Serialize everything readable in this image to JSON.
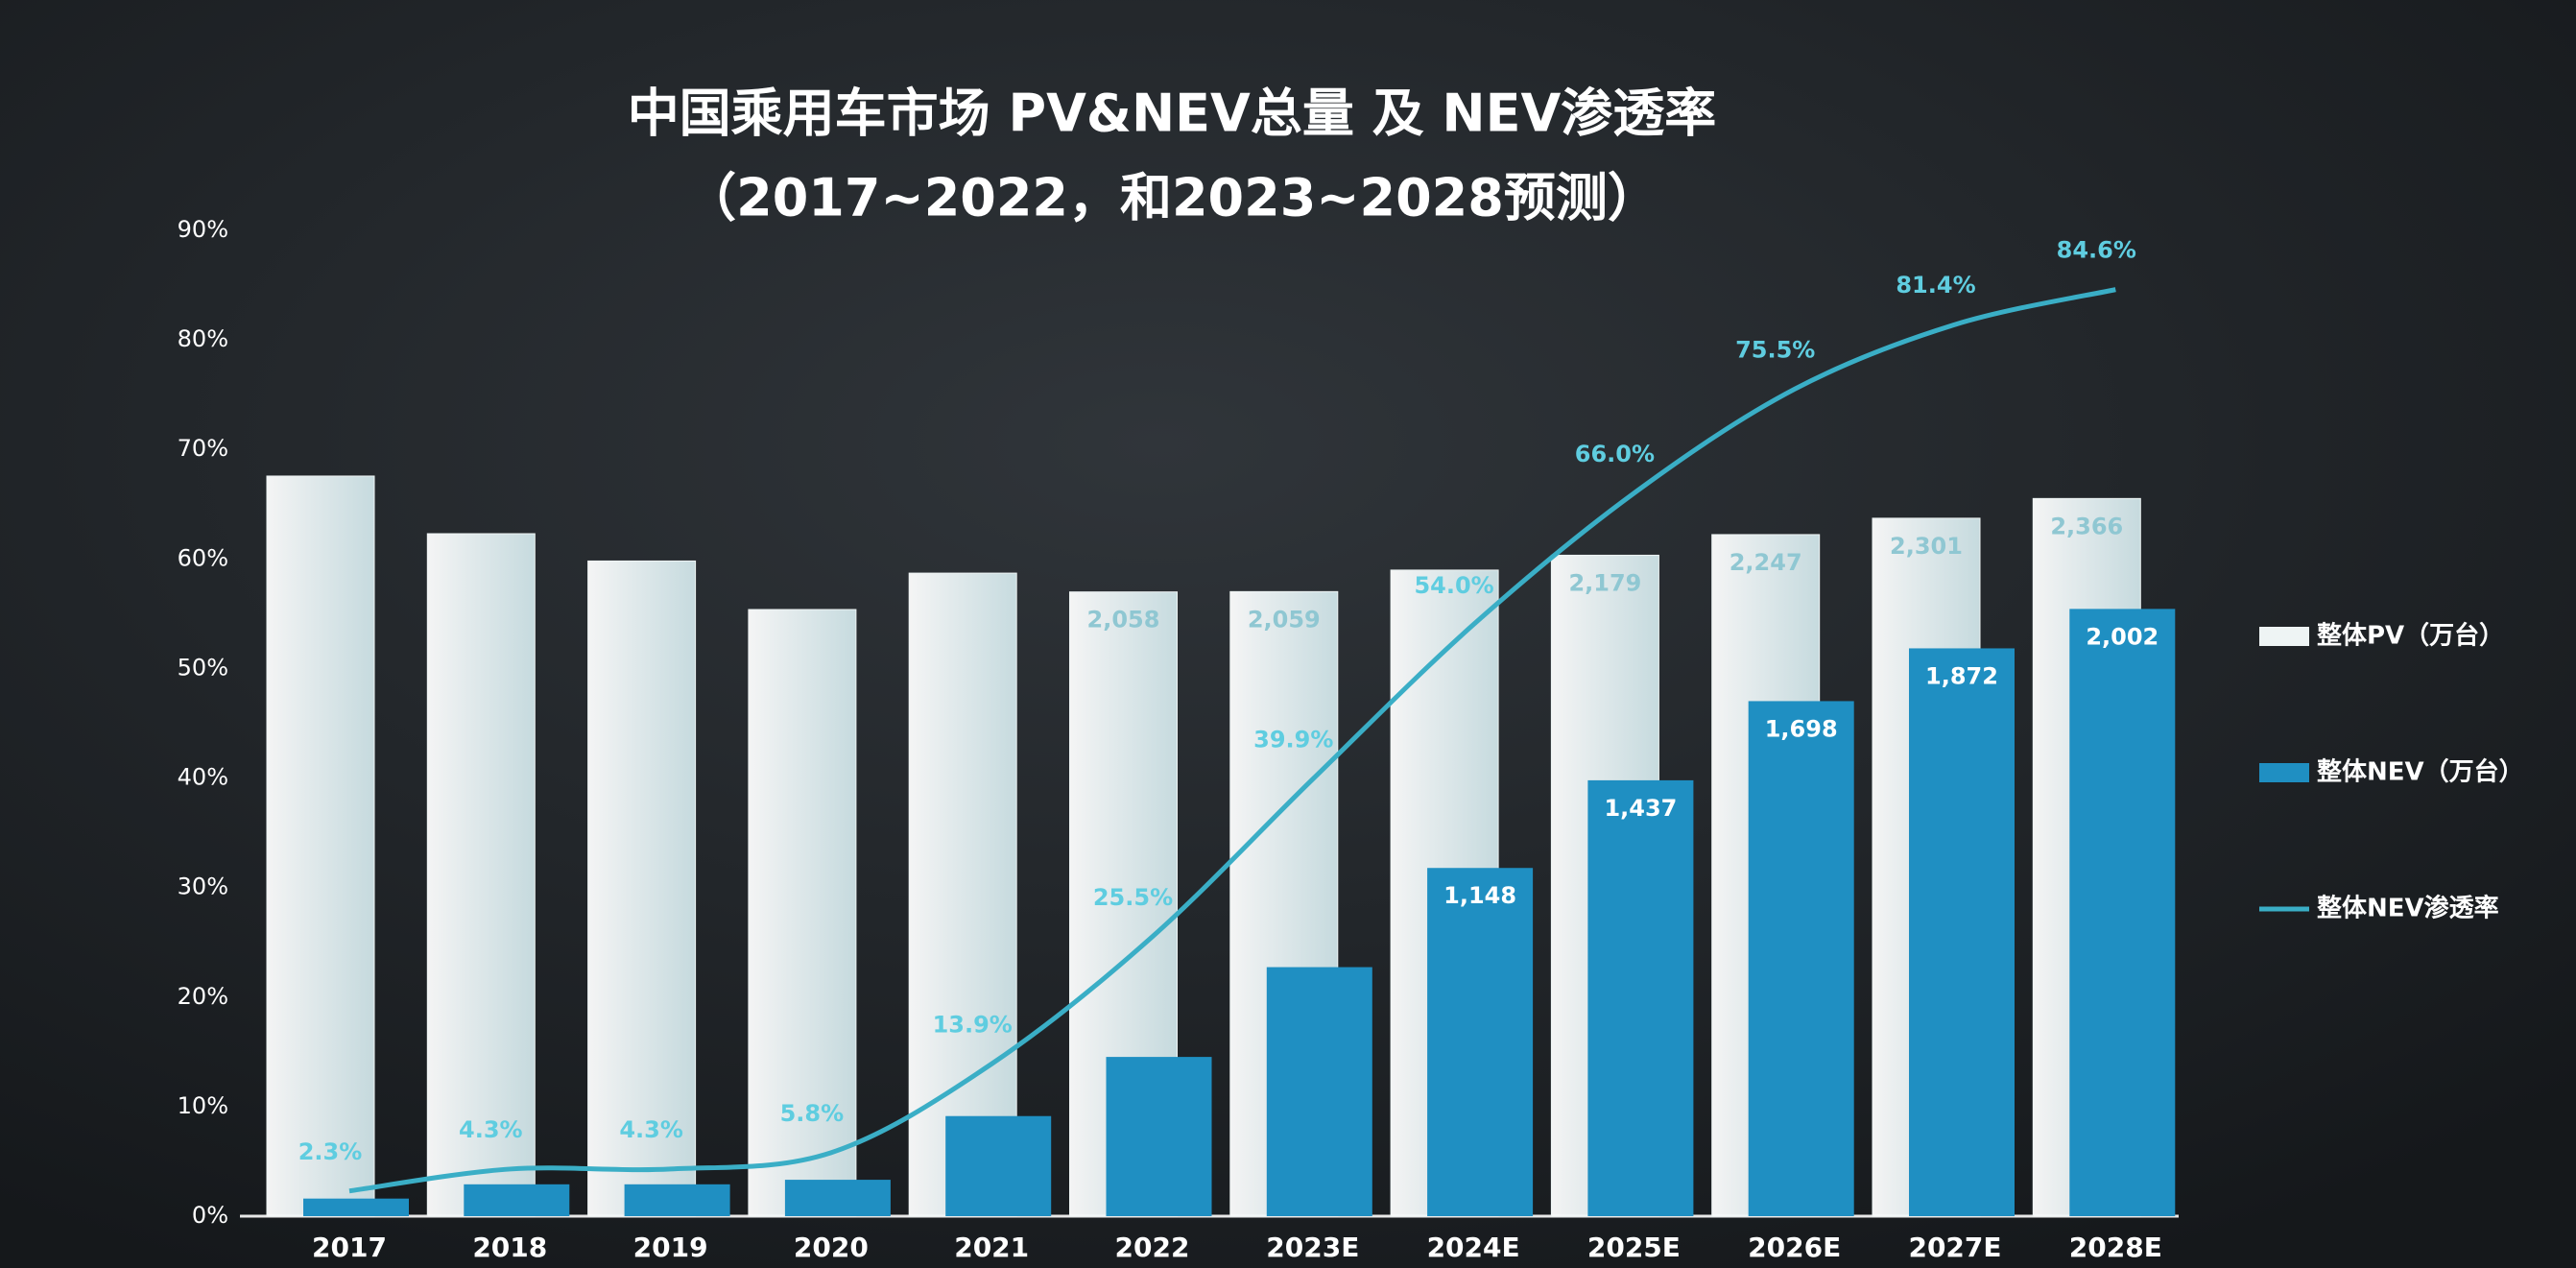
{
  "chart_data": {
    "type": "bar",
    "title": "中国乘用车市场 PV&NEV总量 及 NEV渗透率",
    "subtitle": "（2017~2022，和2023~2028预测）",
    "categories": [
      "2017",
      "2018",
      "2019",
      "2020",
      "2021",
      "2022",
      "2023E",
      "2024E",
      "2025E",
      "2026E",
      "2027E",
      "2028E"
    ],
    "series": [
      {
        "name": "整体PV（万台）",
        "type": "bar",
        "axis": "y2",
        "color": "#eef4f4",
        "values": [
          2440,
          2250,
          2160,
          2000,
          2120,
          2058,
          2059,
          2130,
          2179,
          2247,
          2301,
          2366
        ],
        "value_labels": [
          null,
          null,
          null,
          null,
          null,
          "2,058",
          "2,059",
          null,
          "2,179",
          "2,247",
          "2,301",
          "2,366"
        ]
      },
      {
        "name": "整体NEV（万台）",
        "type": "bar",
        "axis": "y2",
        "color": "#1f8fc2",
        "values": [
          58,
          105,
          105,
          120,
          330,
          525,
          821,
          1148,
          1437,
          1698,
          1872,
          2002
        ],
        "value_labels": [
          null,
          null,
          null,
          null,
          null,
          null,
          null,
          "1,148",
          "1,437",
          "1,698",
          "1,872",
          "2,002"
        ]
      },
      {
        "name": "整体NEV渗透率",
        "type": "line",
        "color": "#3aaec6",
        "values": [
          2.3,
          4.3,
          4.3,
          5.8,
          13.9,
          25.5,
          39.9,
          54.0,
          66.0,
          75.5,
          81.4,
          84.6
        ],
        "value_labels": [
          "2.3%",
          "4.3%",
          "4.3%",
          "5.8%",
          "13.9%",
          "25.5%",
          "39.9%",
          "54.0%",
          "66.0%",
          "75.5%",
          "81.4%",
          "84.6%"
        ]
      }
    ],
    "ylim": [
      0,
      90
    ],
    "yticks": [
      {
        "value": 0,
        "label": "0%"
      },
      {
        "value": 10,
        "label": "10%"
      },
      {
        "value": 20,
        "label": "20%"
      },
      {
        "value": 30,
        "label": "30%"
      },
      {
        "value": 40,
        "label": "40%"
      },
      {
        "value": 50,
        "label": "50%"
      },
      {
        "value": 60,
        "label": "60%"
      },
      {
        "value": 70,
        "label": "70%"
      },
      {
        "value": 80,
        "label": "80%"
      },
      {
        "value": 90,
        "label": "90%"
      }
    ],
    "y2lim": [
      0,
      3250
    ],
    "grid": false,
    "legend": "right"
  }
}
